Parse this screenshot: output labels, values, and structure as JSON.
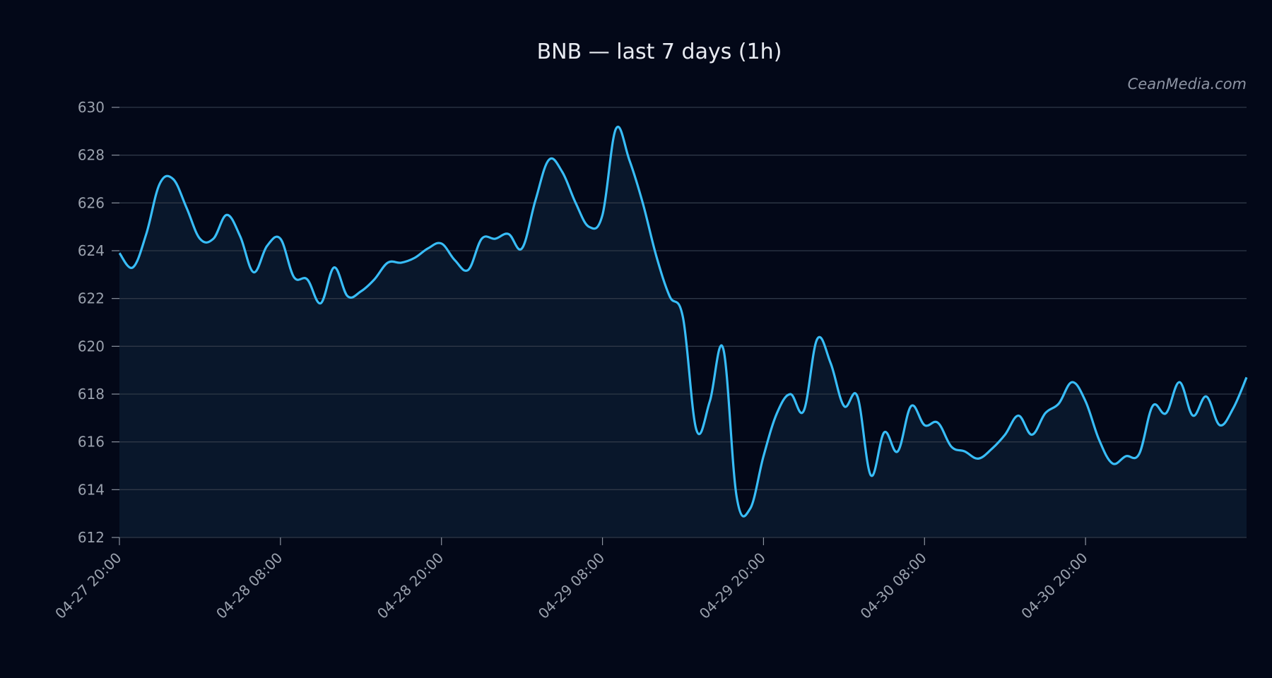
{
  "chart_data": {
    "type": "line",
    "title": "BNB — last 7 days (1h)",
    "watermark": "CeanMedia.com",
    "xlabel": "",
    "ylabel": "",
    "ylim": [
      612,
      630
    ],
    "yticks": [
      612,
      614,
      616,
      618,
      620,
      622,
      624,
      626,
      628,
      630
    ],
    "xticks": [
      {
        "label": "04-27 20:00",
        "index": 0
      },
      {
        "label": "04-28 08:00",
        "index": 12
      },
      {
        "label": "04-28 20:00",
        "index": 24
      },
      {
        "label": "04-29 08:00",
        "index": 36
      },
      {
        "label": "04-29 20:00",
        "index": 48
      },
      {
        "label": "04-30 08:00",
        "index": 60
      },
      {
        "label": "04-30 20:00",
        "index": 72
      }
    ],
    "grid": true,
    "line_color": "#38bdf8",
    "fill_color": "#0a1a2e",
    "series": [
      {
        "values": [
          623.9,
          623.3,
          624.7,
          626.8,
          627.0,
          625.8,
          624.5,
          624.5,
          625.5,
          624.6,
          623.1,
          624.2,
          624.5,
          622.9,
          622.8,
          621.8,
          623.3,
          622.1,
          622.3,
          622.8,
          623.5,
          623.5,
          623.7,
          624.1,
          624.3,
          623.6,
          623.2,
          624.5,
          624.5,
          624.7,
          624.1,
          626.1,
          627.8,
          627.3,
          626.0,
          625.0,
          625.5,
          629.1,
          627.8,
          626.0,
          623.8,
          622.1,
          621.2,
          616.5,
          617.7,
          619.9,
          613.7,
          613.2,
          615.4,
          617.2,
          618.0,
          617.3,
          620.3,
          619.3,
          617.5,
          617.9,
          614.6,
          616.4,
          615.6,
          617.5,
          616.7,
          616.8,
          615.8,
          615.6,
          615.3,
          615.7,
          616.3,
          617.1,
          616.3,
          617.2,
          617.6,
          618.5,
          617.7,
          616.1,
          615.1,
          615.4,
          615.5,
          617.5,
          617.2,
          618.5,
          617.1,
          617.9,
          616.7,
          617.4,
          618.7
        ]
      }
    ]
  }
}
